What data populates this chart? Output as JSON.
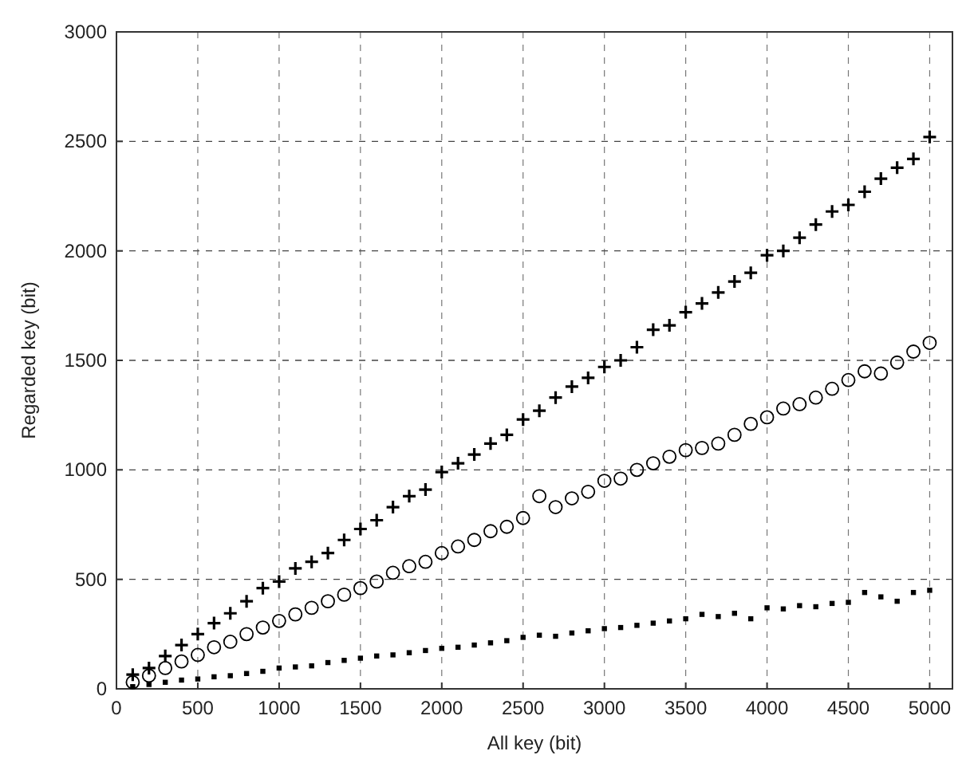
{
  "chart_data": {
    "type": "scatter",
    "xlabel": "All key (bit)",
    "ylabel": "Regarded key (bit)",
    "xlim": [
      0,
      5140
    ],
    "ylim": [
      0,
      3000
    ],
    "xticks": [
      0,
      500,
      1000,
      1500,
      2000,
      2500,
      3000,
      3500,
      4000,
      4500,
      5000
    ],
    "yticks": [
      0,
      500,
      1000,
      1500,
      2000,
      2500,
      3000
    ],
    "grid": true,
    "x": [
      100,
      200,
      300,
      400,
      500,
      600,
      700,
      800,
      900,
      1000,
      1100,
      1200,
      1300,
      1400,
      1500,
      1600,
      1700,
      1800,
      1900,
      2000,
      2100,
      2200,
      2300,
      2400,
      2500,
      2600,
      2700,
      2800,
      2900,
      3000,
      3100,
      3200,
      3300,
      3400,
      3500,
      3600,
      3700,
      3800,
      3900,
      4000,
      4100,
      4200,
      4300,
      4400,
      4500,
      4600,
      4700,
      4800,
      4900,
      5000
    ],
    "series": [
      {
        "color": "#000000",
        "marker": "cross",
        "values": [
          65,
          95,
          150,
          200,
          250,
          300,
          345,
          400,
          460,
          490,
          550,
          580,
          620,
          680,
          730,
          770,
          830,
          880,
          910,
          990,
          1030,
          1070,
          1120,
          1160,
          1230,
          1270,
          1330,
          1380,
          1420,
          1470,
          1500,
          1560,
          1640,
          1660,
          1720,
          1760,
          1810,
          1860,
          1900,
          1980,
          2000,
          2060,
          2120,
          2180,
          2210,
          2270,
          2330,
          2380,
          2420,
          2520
        ]
      },
      {
        "color": "#000000",
        "marker": "circle",
        "values": [
          30,
          60,
          95,
          125,
          155,
          190,
          215,
          250,
          280,
          310,
          340,
          370,
          400,
          430,
          460,
          490,
          530,
          560,
          580,
          620,
          650,
          680,
          720,
          740,
          780,
          880,
          830,
          870,
          900,
          950,
          960,
          1000,
          1030,
          1060,
          1090,
          1100,
          1120,
          1160,
          1210,
          1240,
          1280,
          1300,
          1330,
          1370,
          1410,
          1450,
          1440,
          1490,
          1540,
          1580
        ]
      },
      {
        "color": "#000000",
        "marker": "square",
        "values": [
          10,
          20,
          30,
          40,
          45,
          55,
          60,
          70,
          80,
          95,
          100,
          105,
          120,
          130,
          140,
          150,
          155,
          165,
          175,
          185,
          190,
          200,
          210,
          220,
          235,
          245,
          240,
          255,
          265,
          275,
          280,
          290,
          300,
          310,
          320,
          340,
          330,
          345,
          320,
          370,
          365,
          380,
          375,
          390,
          395,
          440,
          420,
          400,
          440,
          450
        ]
      }
    ]
  }
}
